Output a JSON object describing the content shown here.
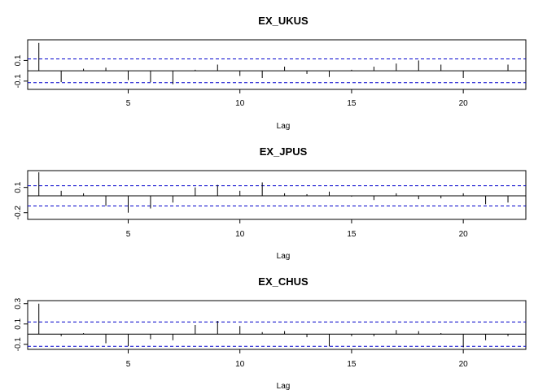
{
  "chart_data": [
    {
      "type": "acf",
      "title": "EX_UKUS",
      "xlabel": "Lag",
      "ylabel": "",
      "xlim": [
        0.5,
        22.8
      ],
      "ylim": [
        -0.18,
        0.3
      ],
      "xticks": [
        5,
        10,
        15,
        20
      ],
      "yticks": [
        -0.1,
        0.1
      ],
      "yticklabels": [
        "-0.1",
        "0.1"
      ],
      "ci": 0.115,
      "lags": [
        1,
        2,
        3,
        4,
        5,
        6,
        7,
        8,
        9,
        10,
        11,
        12,
        13,
        14,
        15,
        16,
        17,
        18,
        19,
        20,
        21,
        22
      ],
      "values": [
        0.27,
        -0.11,
        0.02,
        0.03,
        -0.09,
        -0.11,
        -0.13,
        0.01,
        0.06,
        -0.05,
        -0.07,
        0.04,
        -0.03,
        -0.06,
        0.01,
        0.04,
        0.07,
        0.1,
        0.06,
        -0.07,
        0.0,
        0.06
      ]
    },
    {
      "type": "acf",
      "title": "EX_JPUS",
      "xlabel": "Lag",
      "ylabel": "",
      "xlim": [
        0.5,
        22.8
      ],
      "ylim": [
        -0.28,
        0.3
      ],
      "xticks": [
        5,
        10,
        15,
        20
      ],
      "yticks": [
        -0.2,
        0.1
      ],
      "yticklabels": [
        "-0.2",
        "0.1"
      ],
      "ci": 0.12,
      "lags": [
        1,
        2,
        3,
        4,
        5,
        6,
        7,
        8,
        9,
        10,
        11,
        12,
        13,
        14,
        15,
        16,
        17,
        18,
        19,
        20,
        21,
        22
      ],
      "values": [
        0.28,
        0.06,
        0.03,
        -0.12,
        -0.2,
        -0.15,
        -0.08,
        0.1,
        0.13,
        0.06,
        0.16,
        0.03,
        0.02,
        0.05,
        -0.01,
        -0.05,
        0.03,
        -0.04,
        -0.03,
        0.03,
        -0.1,
        -0.08
      ]
    },
    {
      "type": "acf",
      "title": "EX_CHUS",
      "xlabel": "Lag",
      "ylabel": "",
      "xlim": [
        0.5,
        22.8
      ],
      "ylim": [
        -0.15,
        0.33
      ],
      "xticks": [
        5,
        10,
        15,
        20
      ],
      "yticks": [
        -0.1,
        0.1,
        0.3
      ],
      "yticklabels": [
        "-0.1",
        "0.1",
        "0.3"
      ],
      "ci": 0.12,
      "lags": [
        1,
        2,
        3,
        4,
        5,
        6,
        7,
        8,
        9,
        10,
        11,
        12,
        13,
        14,
        15,
        16,
        17,
        18,
        19,
        20,
        21,
        22
      ],
      "values": [
        0.3,
        -0.02,
        0.01,
        -0.09,
        -0.12,
        -0.05,
        -0.06,
        0.09,
        0.13,
        0.08,
        0.02,
        0.03,
        -0.03,
        -0.12,
        -0.02,
        -0.02,
        0.04,
        0.03,
        0.01,
        -0.13,
        -0.06,
        -0.02
      ]
    }
  ],
  "colors": {
    "axis": "#000000",
    "bars": "#000000",
    "ci_line": "#0000cc"
  }
}
